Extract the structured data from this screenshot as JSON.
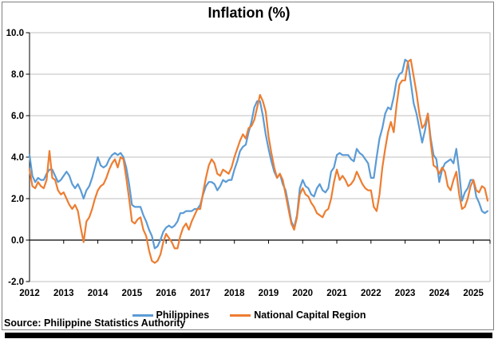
{
  "title": "Inflation (%)",
  "source_note": "Source: Philippine Statistics Authority",
  "colors": {
    "philippines_line": "#5B9BD5",
    "ncr_line": "#ED7D31",
    "gridline": "#BFBFBF",
    "axis": "#000000",
    "frame_border": "#808080",
    "bottom_bar": "#000000",
    "text": "#000000"
  },
  "chart_data": {
    "type": "line",
    "title": "Inflation (%)",
    "frequency": "monthly",
    "x_start": "Jan 2012",
    "x_end": "Jun 2025",
    "x_year_labels": [
      "2012",
      "2013",
      "2014",
      "2015",
      "2016",
      "2017",
      "2018",
      "2019",
      "2020",
      "2021",
      "2022",
      "2023",
      "2024",
      "2025"
    ],
    "y_tick_labels": [
      "10.0",
      "8.0",
      "6.0",
      "4.0",
      "2.0",
      "0.0",
      "-2.0"
    ],
    "ylim": [
      -2.0,
      10.0
    ],
    "grid": true,
    "legend_position": "bottom",
    "x_axis_crosses_at": 0,
    "series": [
      {
        "name": "Philippines",
        "color": "#5B9BD5",
        "values": [
          4.1,
          3.1,
          2.8,
          3.0,
          2.9,
          2.9,
          3.2,
          3.4,
          3.4,
          3.1,
          2.8,
          2.9,
          3.1,
          3.3,
          3.1,
          2.7,
          2.5,
          2.7,
          2.4,
          2.0,
          2.4,
          2.6,
          3.0,
          3.5,
          4.0,
          3.6,
          3.5,
          3.6,
          3.9,
          4.1,
          4.2,
          4.1,
          4.2,
          4.0,
          3.5,
          2.7,
          1.7,
          1.6,
          1.6,
          1.6,
          1.2,
          0.9,
          0.5,
          0.2,
          -0.4,
          -0.3,
          0.0,
          0.4,
          0.6,
          0.7,
          0.6,
          0.7,
          0.9,
          1.3,
          1.3,
          1.4,
          1.4,
          1.4,
          1.5,
          1.5,
          1.7,
          2.2,
          2.6,
          2.8,
          2.8,
          2.7,
          2.4,
          2.6,
          2.9,
          2.8,
          2.9,
          2.9,
          3.4,
          3.8,
          4.3,
          4.5,
          4.6,
          5.2,
          5.7,
          6.4,
          6.7,
          6.7,
          6.0,
          5.1,
          4.4,
          3.8,
          3.3,
          3.0,
          3.2,
          2.7,
          2.4,
          1.7,
          0.9,
          0.6,
          1.2,
          2.5,
          2.9,
          2.6,
          2.5,
          2.2,
          2.1,
          2.5,
          2.7,
          2.4,
          2.3,
          2.5,
          3.3,
          3.5,
          4.1,
          4.2,
          4.1,
          4.1,
          4.1,
          3.9,
          3.8,
          4.4,
          4.2,
          4.1,
          3.9,
          3.7,
          3.0,
          3.0,
          4.0,
          4.9,
          5.4,
          6.1,
          6.4,
          6.3,
          6.9,
          7.7,
          8.0,
          8.1,
          8.7,
          8.6,
          7.6,
          6.6,
          6.1,
          5.4,
          4.7,
          5.3,
          6.1,
          4.9,
          4.1,
          3.9,
          2.8,
          3.4,
          3.7,
          3.8,
          3.9,
          3.7,
          4.4,
          3.3,
          1.9,
          2.3,
          2.5,
          2.9,
          2.9,
          2.1,
          1.8,
          1.4,
          1.3,
          1.4
        ]
      },
      {
        "name": "National Capital Region",
        "color": "#ED7D31",
        "values": [
          3.4,
          2.6,
          2.5,
          2.8,
          2.6,
          2.5,
          2.9,
          4.3,
          3.0,
          2.9,
          2.4,
          2.2,
          2.3,
          2.0,
          1.7,
          1.5,
          1.7,
          1.4,
          0.6,
          -0.1,
          0.9,
          1.1,
          1.5,
          2.0,
          2.4,
          2.6,
          2.7,
          3.0,
          3.4,
          3.7,
          3.9,
          3.5,
          4.0,
          3.9,
          3.0,
          2.0,
          0.9,
          0.8,
          1.0,
          1.1,
          0.5,
          0.2,
          -0.5,
          -1.0,
          -1.1,
          -1.0,
          -0.7,
          -0.1,
          0.3,
          0.1,
          -0.1,
          -0.4,
          -0.4,
          0.2,
          0.6,
          0.8,
          0.5,
          0.9,
          1.2,
          1.5,
          1.5,
          2.3,
          3.0,
          3.6,
          3.9,
          3.7,
          3.2,
          3.1,
          3.4,
          3.3,
          3.2,
          3.5,
          4.0,
          4.4,
          4.8,
          5.1,
          4.9,
          5.4,
          5.5,
          5.8,
          6.4,
          7.0,
          6.7,
          6.2,
          5.0,
          4.2,
          3.5,
          3.0,
          3.2,
          2.9,
          2.2,
          1.5,
          0.8,
          0.5,
          1.1,
          2.2,
          2.5,
          2.2,
          2.1,
          1.8,
          1.6,
          1.3,
          1.2,
          1.1,
          1.4,
          1.5,
          2.0,
          2.8,
          3.4,
          2.9,
          3.1,
          2.9,
          2.6,
          2.7,
          2.9,
          3.3,
          3.0,
          2.7,
          2.5,
          2.4,
          2.4,
          1.6,
          1.4,
          2.2,
          3.5,
          4.4,
          5.2,
          5.7,
          5.2,
          6.5,
          7.5,
          7.7,
          7.7,
          8.6,
          8.7,
          7.9,
          7.1,
          6.1,
          5.4,
          5.6,
          6.1,
          4.7,
          3.6,
          3.5,
          3.2,
          3.5,
          3.3,
          2.6,
          2.4,
          2.9,
          3.3,
          2.2,
          1.5,
          1.6,
          2.0,
          2.6,
          2.9,
          2.4,
          2.3,
          2.6,
          2.5,
          1.9
        ]
      }
    ]
  }
}
